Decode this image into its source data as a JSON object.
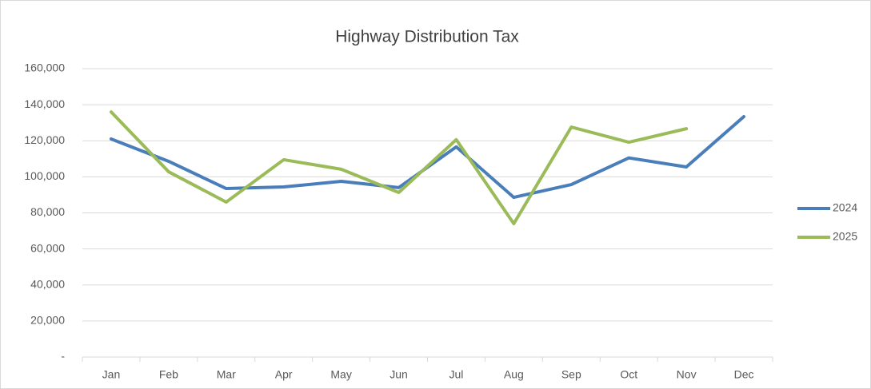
{
  "chart_data": {
    "type": "line",
    "title": "Highway Distribution Tax",
    "categories": [
      "Jan",
      "Feb",
      "Mar",
      "Apr",
      "May",
      "Jun",
      "Jul",
      "Aug",
      "Sep",
      "Oct",
      "Nov",
      "Dec"
    ],
    "series": [
      {
        "name": "2024",
        "color": "#4a7ebb",
        "values": [
          121000,
          108600,
          93500,
          94400,
          97500,
          94000,
          116600,
          88600,
          95700,
          110500,
          105500,
          133400
        ]
      },
      {
        "name": "2025",
        "color": "#9bbb59",
        "values": [
          136000,
          102800,
          86000,
          109500,
          104200,
          91300,
          120600,
          74000,
          127600,
          119200,
          126700,
          null
        ]
      }
    ],
    "ylim": [
      0,
      160000
    ],
    "yticks": [
      {
        "value": 0,
        "label": "-"
      },
      {
        "value": 20000,
        "label": "20,000"
      },
      {
        "value": 40000,
        "label": "40,000"
      },
      {
        "value": 60000,
        "label": "60,000"
      },
      {
        "value": 80000,
        "label": "80,000"
      },
      {
        "value": 100000,
        "label": "100,000"
      },
      {
        "value": 120000,
        "label": "120,000"
      },
      {
        "value": 140000,
        "label": "140,000"
      },
      {
        "value": 160000,
        "label": "160,000"
      }
    ],
    "grid": true,
    "legend": "right"
  }
}
